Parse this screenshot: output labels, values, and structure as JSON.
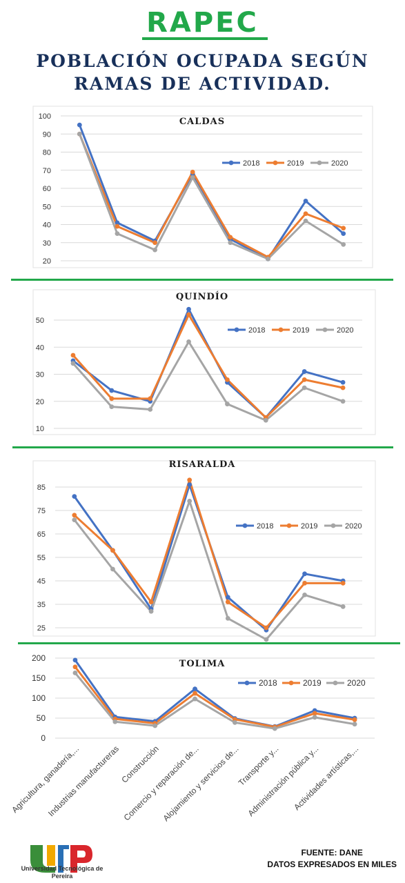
{
  "header": {
    "brand": "RAPEC",
    "title_line1": "POBLACIÓN OCUPADA SEGÚN",
    "title_line2": "RAMAS DE ACTIVIDAD."
  },
  "footer": {
    "logo_text": "Universidad Tecnológica de Pereira",
    "source": "FUENTE: DANE",
    "note": "DATOS EXPRESADOS EN MILES"
  },
  "colors": {
    "2018": "#4472c4",
    "2019": "#ed7d31",
    "2020": "#a5a5a5",
    "accent": "#22a84a",
    "title": "#18305a"
  },
  "chart_data": [
    {
      "type": "line",
      "title": "CALDAS",
      "categories": [
        "Agricultura, ganadería,...",
        "Industrias manufactureras",
        "Construcción",
        "Comercio y reparación de...",
        "Alojamiento y servicios de...",
        "Transporte y...",
        "Administración pública y...",
        "Actividades artísticas,..."
      ],
      "ylim": [
        20,
        100
      ],
      "yticks": [
        20,
        30,
        40,
        50,
        60,
        70,
        80,
        90,
        100
      ],
      "grid": true,
      "legend": "top-right",
      "series": [
        {
          "name": "2018",
          "values": [
            95,
            41,
            31,
            68,
            32,
            21,
            53,
            35
          ]
        },
        {
          "name": "2019",
          "values": [
            90,
            39,
            30,
            69,
            33,
            22,
            46,
            38
          ]
        },
        {
          "name": "2020",
          "values": [
            90,
            35,
            26,
            66,
            30,
            21,
            42,
            29
          ]
        }
      ]
    },
    {
      "type": "line",
      "title": "QUINDÍO",
      "categories": [
        "Agricultura, ganadería,...",
        "Industrias manufactureras",
        "Construcción",
        "Comercio y reparación de...",
        "Alojamiento y servicios de...",
        "Transporte y...",
        "Administración pública y...",
        "Actividades artísticas,..."
      ],
      "ylim": [
        10,
        50
      ],
      "yticks": [
        10,
        20,
        30,
        40,
        50
      ],
      "grid": true,
      "legend": "top-right",
      "series": [
        {
          "name": "2018",
          "values": [
            35,
            24,
            20,
            54,
            27,
            14,
            31,
            27
          ]
        },
        {
          "name": "2019",
          "values": [
            37,
            21,
            21,
            52,
            28,
            14,
            28,
            25
          ]
        },
        {
          "name": "2020",
          "values": [
            34,
            18,
            17,
            42,
            19,
            13,
            25,
            20
          ]
        }
      ]
    },
    {
      "type": "line",
      "title": "RISARALDA",
      "categories": [
        "Agricultura, ganadería,...",
        "Industrias manufactureras",
        "Construcción",
        "Comercio y reparación de...",
        "Alojamiento y servicios de...",
        "Transporte y...",
        "Administración pública y...",
        "Actividades artísticas,..."
      ],
      "ylim": [
        25,
        85
      ],
      "yticks": [
        25,
        35,
        45,
        55,
        65,
        75,
        85
      ],
      "grid": true,
      "legend": "top-right",
      "series": [
        {
          "name": "2018",
          "values": [
            81,
            58,
            33,
            86,
            38,
            24,
            48,
            45
          ]
        },
        {
          "name": "2019",
          "values": [
            73,
            58,
            36,
            88,
            36,
            25,
            44,
            44
          ]
        },
        {
          "name": "2020",
          "values": [
            71,
            50,
            32,
            79,
            29,
            20,
            39,
            34
          ]
        }
      ]
    },
    {
      "type": "line",
      "title": "TOLIMA",
      "categories": [
        "Agricultura, ganadería,...",
        "Industrias manufactureras",
        "Construcción",
        "Comercio y reparación de...",
        "Alojamiento y servicios de...",
        "Transporte y...",
        "Administración pública y...",
        "Actividades artísticas,..."
      ],
      "ylim": [
        0,
        200
      ],
      "yticks": [
        0,
        50,
        100,
        150,
        200
      ],
      "grid": true,
      "legend": "top-right",
      "show_xlabels": true,
      "series": [
        {
          "name": "2018",
          "values": [
            195,
            53,
            42,
            123,
            49,
            29,
            69,
            50
          ]
        },
        {
          "name": "2019",
          "values": [
            178,
            48,
            37,
            112,
            47,
            28,
            62,
            46
          ]
        },
        {
          "name": "2020",
          "values": [
            163,
            41,
            31,
            98,
            39,
            24,
            52,
            35
          ]
        }
      ]
    }
  ]
}
